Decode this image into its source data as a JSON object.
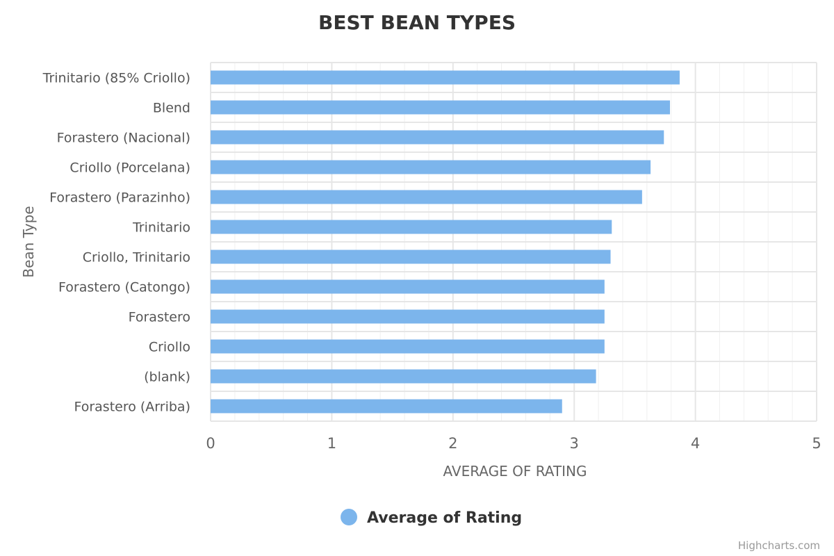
{
  "chart_data": {
    "type": "bar",
    "orientation": "horizontal",
    "title": "BEST BEAN TYPES",
    "categories": [
      "Trinitario (85% Criollo)",
      "Blend",
      "Forastero (Nacional)",
      "Criollo (Porcelana)",
      "Forastero (Parazinho)",
      "Trinitario",
      "Criollo, Trinitario",
      "Forastero (Catongo)",
      "Forastero",
      "Criollo",
      "(blank)",
      "Forastero (Arriba)"
    ],
    "series": [
      {
        "name": "Average of Rating",
        "values": [
          3.87,
          3.79,
          3.74,
          3.63,
          3.56,
          3.31,
          3.3,
          3.25,
          3.25,
          3.25,
          3.18,
          2.9
        ]
      }
    ],
    "xlabel": "AVERAGE OF RATING",
    "ylabel": "Bean Type",
    "xlim": [
      0,
      5
    ],
    "ticks": [
      "0",
      "1",
      "2",
      "3",
      "4",
      "5"
    ],
    "grid": true,
    "legend_position": "bottom-center",
    "colors": {
      "bar": "#7cb5ec",
      "grid": "#e6e6e6",
      "text": "#333333"
    }
  },
  "credits": "Highcharts.com"
}
